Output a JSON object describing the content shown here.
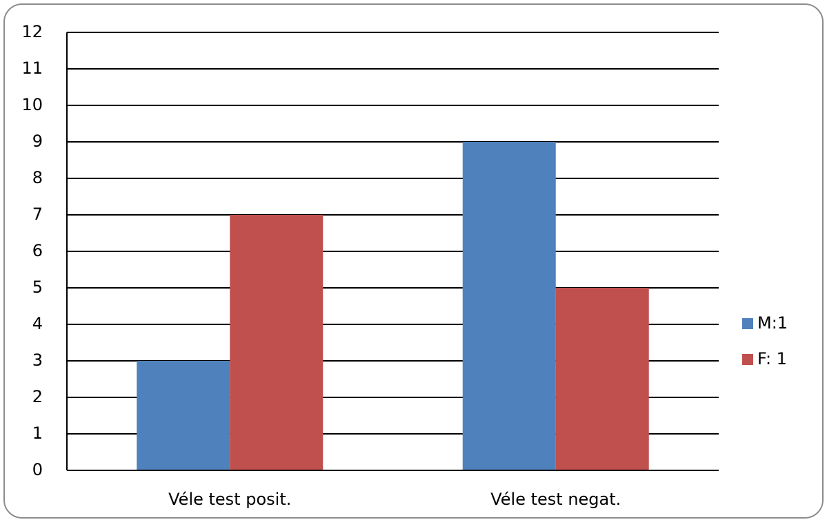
{
  "chart_data": {
    "type": "bar",
    "categories": [
      "Véle test posit.",
      "Véle test negat."
    ],
    "series": [
      {
        "name": "M:1",
        "color": "#4f81bd",
        "values": [
          3,
          9
        ]
      },
      {
        "name": "F: 1",
        "color": "#c0504d",
        "values": [
          7,
          5
        ]
      }
    ],
    "ylim": [
      0,
      12
    ],
    "yticks": [
      0,
      1,
      2,
      3,
      4,
      5,
      6,
      7,
      8,
      9,
      10,
      11,
      12
    ],
    "grid": true,
    "legend": "right"
  }
}
